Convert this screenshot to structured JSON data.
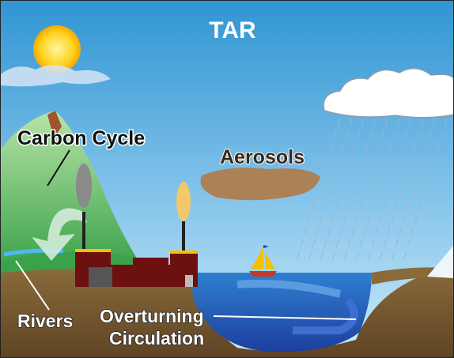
{
  "title": "TAR",
  "labels": [
    {
      "text": "Carbon Cycle"
    },
    {
      "text": "Aerosols"
    },
    {
      "text": "Rivers"
    },
    {
      "text": "Overturning"
    },
    {
      "text": "Circulation"
    }
  ]
}
